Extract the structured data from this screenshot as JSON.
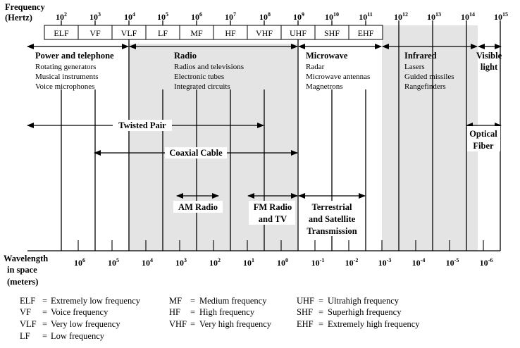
{
  "header": {
    "freq_label_1": "Frequency",
    "freq_label_2": "(Hertz)",
    "wl_label_1": "Wavelength",
    "wl_label_2": "in space",
    "wl_label_3": "(meters)"
  },
  "frequency_ticks": [
    {
      "base": "10",
      "exp": "2"
    },
    {
      "base": "10",
      "exp": "3"
    },
    {
      "base": "10",
      "exp": "4"
    },
    {
      "base": "10",
      "exp": "5"
    },
    {
      "base": "10",
      "exp": "6"
    },
    {
      "base": "10",
      "exp": "7"
    },
    {
      "base": "10",
      "exp": "8"
    },
    {
      "base": "10",
      "exp": "9"
    },
    {
      "base": "10",
      "exp": "10"
    },
    {
      "base": "10",
      "exp": "11"
    },
    {
      "base": "10",
      "exp": "12"
    },
    {
      "base": "10",
      "exp": "13"
    },
    {
      "base": "10",
      "exp": "14"
    },
    {
      "base": "10",
      "exp": "15"
    }
  ],
  "bands": [
    "ELF",
    "VF",
    "VLF",
    "LF",
    "MF",
    "HF",
    "VHF",
    "UHF",
    "SHF",
    "EHF"
  ],
  "wavelength_ticks": [
    {
      "base": "10",
      "exp": "6"
    },
    {
      "base": "10",
      "exp": "5"
    },
    {
      "base": "10",
      "exp": "4"
    },
    {
      "base": "10",
      "exp": "3"
    },
    {
      "base": "10",
      "exp": "2"
    },
    {
      "base": "10",
      "exp": "1"
    },
    {
      "base": "10",
      "exp": "0"
    },
    {
      "base": "10",
      "exp": "-1"
    },
    {
      "base": "10",
      "exp": "-2"
    },
    {
      "base": "10",
      "exp": "-3"
    },
    {
      "base": "10",
      "exp": "-4"
    },
    {
      "base": "10",
      "exp": "-5"
    },
    {
      "base": "10",
      "exp": "-6"
    }
  ],
  "categories": [
    {
      "title": "Power and telephone",
      "items": [
        "Rotating generators",
        "Musical instruments",
        "Voice microphones"
      ]
    },
    {
      "title": "Radio",
      "items": [
        "Radios and televisions",
        "Electronic tubes",
        "Integrated circuits"
      ]
    },
    {
      "title": "Microwave",
      "items": [
        "Radar",
        "Microwave antennas",
        "Magnetrons"
      ]
    },
    {
      "title": "Infrared",
      "items": [
        "Lasers",
        "Guided missiles",
        "Rangefinders"
      ]
    },
    {
      "title": "Visible light",
      "items": []
    }
  ],
  "media": {
    "twisted_pair": "Twisted Pair",
    "coaxial_cable": "Coaxial Cable",
    "optical_fiber_1": "Optical",
    "optical_fiber_2": "Fiber",
    "am_radio": "AM Radio",
    "fm_radio_1": "FM Radio",
    "fm_radio_2": "and TV",
    "terrestrial_1": "Terrestrial",
    "terrestrial_2": "and Satellite",
    "terrestrial_3": "Transmission"
  },
  "legend": [
    {
      "abbr": "ELF",
      "desc": "Extremely low frequency"
    },
    {
      "abbr": "VF",
      "desc": "Voice frequency"
    },
    {
      "abbr": "VLF",
      "desc": "Very low frequency"
    },
    {
      "abbr": "LF",
      "desc": "Low frequency"
    },
    {
      "abbr": "MF",
      "desc": "Medium frequency"
    },
    {
      "abbr": "HF",
      "desc": "High frequency"
    },
    {
      "abbr": "VHF",
      "desc": "Very high frequency"
    },
    {
      "abbr": "UHF",
      "desc": "Ultrahigh frequency"
    },
    {
      "abbr": "SHF",
      "desc": "Superhigh frequency"
    },
    {
      "abbr": "EHF",
      "desc": "Extremely high frequency"
    }
  ],
  "colors": {
    "shade": "#e4e4e4",
    "ink": "#000000"
  }
}
